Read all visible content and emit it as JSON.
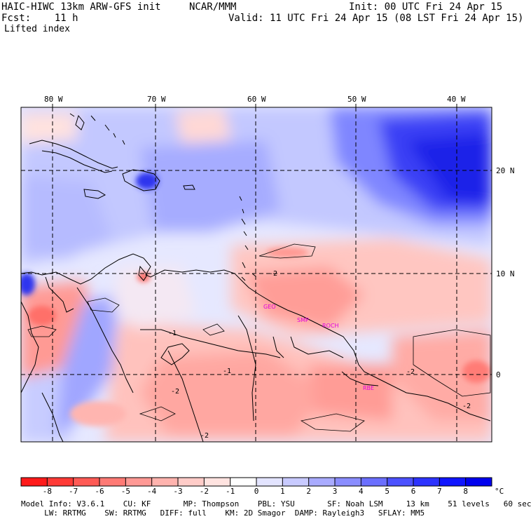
{
  "header": {
    "title": "HAIC-HIWC 13km ARW-GFS init",
    "org": "NCAR/MMM",
    "init": "Init: 00 UTC Fri 24 Apr 15",
    "fcst": "Fcst:    11 h",
    "valid": "Valid: 11 UTC Fri 24 Apr 15 (08 LST Fri 24 Apr 15)",
    "field": "Lifted index"
  },
  "map": {
    "lon_labels": [
      "80 W",
      "70 W",
      "60 W",
      "50 W",
      "40 W"
    ],
    "lat_labels": [
      "20 N",
      "10 N",
      "0"
    ],
    "stations": [
      "GEO",
      "SMP",
      "ROCH",
      "RBE"
    ],
    "contour_labels": [
      "-2",
      "-2",
      "-2",
      "-1",
      "-1",
      "-2",
      "-2"
    ]
  },
  "colorbar": {
    "ticks": [
      "-8",
      "-7",
      "-6",
      "-5",
      "-4",
      "-3",
      "-2",
      "-1",
      "0",
      "1",
      "2",
      "3",
      "4",
      "5",
      "6",
      "7",
      "8"
    ],
    "unit": "°C",
    "colors": [
      "#ff1a1a",
      "#ff3a36",
      "#ff5a55",
      "#ff7a75",
      "#ff9995",
      "#ffb3ae",
      "#ffccc8",
      "#ffe3e0",
      "#ffffff",
      "#e3e4ff",
      "#c8caff",
      "#a9abff",
      "#8a8dff",
      "#6b6fff",
      "#4c51ff",
      "#2d33ff",
      "#1015ff",
      "#0000ee"
    ]
  },
  "footer": {
    "line1": "Model Info: V3.6.1    CU: KF       MP: Thompson    PBL: YSU       SF: Noah LSM     13 km    51 levels   60 sec",
    "line2": "     LW: RRTMG    SW: RRTMG   DIFF: full    KM: 2D Smagor  DAMP: Rayleigh3   SFLAY: MM5"
  }
}
